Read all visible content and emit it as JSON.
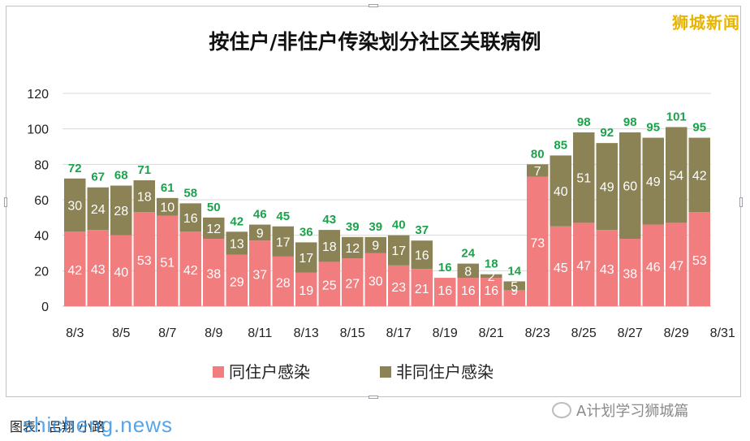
{
  "brand": "狮城新闻",
  "caption": "图表：吕翔 小路",
  "watermark": "shicheng.news",
  "wechat_account": "A计划学习狮城篇",
  "colors": {
    "same": "#f27d7f",
    "non_same": "#8b8355",
    "total_label": "#1aa34a",
    "grid": "#d9d9d9"
  },
  "chart_data": {
    "type": "bar",
    "stacked": true,
    "title": "按住户/非住户传染划分社区关联病例",
    "xlabel": "",
    "ylabel": "",
    "ylim": [
      0,
      120
    ],
    "yticks": [
      0,
      20,
      40,
      60,
      80,
      100,
      120
    ],
    "grid": true,
    "legend_position": "bottom",
    "categories": [
      "8/3",
      "8/4",
      "8/5",
      "8/6",
      "8/7",
      "8/8",
      "8/9",
      "8/10",
      "8/11",
      "8/12",
      "8/13",
      "8/14",
      "8/15",
      "8/16",
      "8/17",
      "8/18",
      "8/19",
      "8/20",
      "8/21",
      "8/22",
      "8/23",
      "8/24",
      "8/25",
      "8/26",
      "8/27",
      "8/28",
      "8/29",
      "8/30"
    ],
    "xtick_labels": [
      "8/3",
      "8/5",
      "8/7",
      "8/9",
      "8/11",
      "8/13",
      "8/15",
      "8/17",
      "8/19",
      "8/21",
      "8/23",
      "8/25",
      "8/27",
      "8/29",
      "8/31"
    ],
    "series": [
      {
        "name": "同住户感染",
        "values": [
          42,
          43,
          40,
          53,
          51,
          42,
          38,
          29,
          37,
          28,
          19,
          25,
          27,
          30,
          23,
          21,
          16,
          16,
          16,
          9,
          73,
          45,
          47,
          43,
          38,
          46,
          47,
          53
        ]
      },
      {
        "name": "非同住户感染",
        "values": [
          30,
          24,
          28,
          18,
          10,
          16,
          12,
          13,
          9,
          17,
          17,
          18,
          12,
          9,
          17,
          16,
          0,
          8,
          2,
          5,
          7,
          40,
          51,
          49,
          60,
          49,
          54,
          42
        ]
      }
    ],
    "totals": [
      72,
      67,
      68,
      71,
      61,
      58,
      50,
      42,
      46,
      45,
      36,
      43,
      39,
      39,
      40,
      37,
      16,
      24,
      18,
      14,
      80,
      85,
      98,
      92,
      98,
      95,
      101,
      95
    ]
  }
}
